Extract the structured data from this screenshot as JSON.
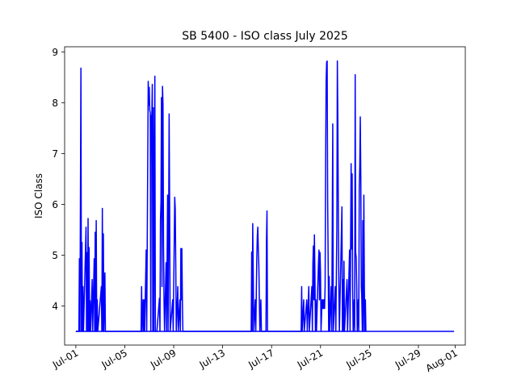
{
  "chart_data": {
    "type": "line",
    "title": "SB 5400 - ISO class July 2025",
    "xlabel": "",
    "ylabel": "ISO Class",
    "xlim": [
      "2025-06-30T02:00",
      "2025-08-01T20:00"
    ],
    "ylim": [
      3.23,
      9.1
    ],
    "grid": false,
    "legend": "none",
    "x_tick_labels": [
      {
        "date": "2025-07-01",
        "label": "Jul-01"
      },
      {
        "date": "2025-07-05",
        "label": "Jul-05"
      },
      {
        "date": "2025-07-09",
        "label": "Jul-09"
      },
      {
        "date": "2025-07-13",
        "label": "Jul-13"
      },
      {
        "date": "2025-07-17",
        "label": "Jul-17"
      },
      {
        "date": "2025-07-21",
        "label": "Jul-21"
      },
      {
        "date": "2025-07-25",
        "label": "Jul-25"
      },
      {
        "date": "2025-07-29",
        "label": "Jul-29"
      },
      {
        "date": "2025-08-01",
        "label": "Aug-01"
      }
    ],
    "y_ticks": [
      4,
      5,
      6,
      7,
      8,
      9
    ],
    "series": [
      {
        "color": "#0000ff",
        "baseline": 3.5,
        "points": [
          [
            "2025-07-01T00:00",
            3.5
          ],
          [
            "2025-07-01T06:00",
            3.5
          ],
          [
            "2025-07-01T07:00",
            4.93
          ],
          [
            "2025-07-01T08:00",
            3.5
          ],
          [
            "2025-07-01T10:00",
            8.68
          ],
          [
            "2025-07-01T11:00",
            3.5
          ],
          [
            "2025-07-01T12:00",
            5.25
          ],
          [
            "2025-07-01T13:00",
            3.5
          ],
          [
            "2025-07-01T14:00",
            4.38
          ],
          [
            "2025-07-01T15:00",
            3.5
          ],
          [
            "2025-07-01T20:00",
            5.55
          ],
          [
            "2025-07-01T21:00",
            3.5
          ],
          [
            "2025-07-01T22:00",
            5.05
          ],
          [
            "2025-07-01T23:00",
            3.5
          ],
          [
            "2025-07-02T00:00",
            5.72
          ],
          [
            "2025-07-02T01:00",
            3.5
          ],
          [
            "2025-07-02T02:00",
            5.15
          ],
          [
            "2025-07-02T03:00",
            3.5
          ],
          [
            "2025-07-02T04:00",
            4.1
          ],
          [
            "2025-07-02T05:00",
            3.5
          ],
          [
            "2025-07-02T08:00",
            4.52
          ],
          [
            "2025-07-02T09:00",
            3.5
          ],
          [
            "2025-07-02T12:00",
            4.93
          ],
          [
            "2025-07-02T13:00",
            3.5
          ],
          [
            "2025-07-02T14:00",
            5.45
          ],
          [
            "2025-07-02T15:00",
            3.5
          ],
          [
            "2025-07-02T16:00",
            5.68
          ],
          [
            "2025-07-02T17:00",
            3.5
          ],
          [
            "2025-07-02T18:00",
            4.12
          ],
          [
            "2025-07-02T19:00",
            3.5
          ],
          [
            "2025-07-03T02:00",
            4.38
          ],
          [
            "2025-07-03T03:00",
            3.5
          ],
          [
            "2025-07-03T04:00",
            5.92
          ],
          [
            "2025-07-03T05:00",
            3.5
          ],
          [
            "2025-07-03T06:00",
            5.42
          ],
          [
            "2025-07-03T07:00",
            3.5
          ],
          [
            "2025-07-03T09:00",
            4.65
          ],
          [
            "2025-07-03T10:00",
            3.5
          ],
          [
            "2025-07-06T08:00",
            3.5
          ],
          [
            "2025-07-06T09:00",
            4.38
          ],
          [
            "2025-07-06T10:00",
            3.5
          ],
          [
            "2025-07-06T12:00",
            4.12
          ],
          [
            "2025-07-06T13:00",
            3.5
          ],
          [
            "2025-07-06T14:00",
            4.12
          ],
          [
            "2025-07-06T15:00",
            3.5
          ],
          [
            "2025-07-06T18:00",
            5.1
          ],
          [
            "2025-07-06T19:00",
            3.5
          ],
          [
            "2025-07-06T22:00",
            8.42
          ],
          [
            "2025-07-06T23:00",
            7.95
          ],
          [
            "2025-07-07T00:00",
            8.3
          ],
          [
            "2025-07-07T01:00",
            7.85
          ],
          [
            "2025-07-07T02:00",
            7.8
          ],
          [
            "2025-07-07T03:00",
            3.5
          ],
          [
            "2025-07-07T04:00",
            7.75
          ],
          [
            "2025-07-07T05:00",
            7.7
          ],
          [
            "2025-07-07T06:00",
            8.36
          ],
          [
            "2025-07-07T07:00",
            3.5
          ],
          [
            "2025-07-07T08:00",
            7.9
          ],
          [
            "2025-07-07T09:00",
            3.5
          ],
          [
            "2025-07-07T11:00",
            8.52
          ],
          [
            "2025-07-07T12:00",
            3.5
          ],
          [
            "2025-07-07T15:00",
            3.5
          ],
          [
            "2025-07-07T20:00",
            4.15
          ],
          [
            "2025-07-07T21:00",
            3.5
          ],
          [
            "2025-07-07T22:00",
            5.68
          ],
          [
            "2025-07-07T23:00",
            6.05
          ],
          [
            "2025-07-08T00:00",
            8.1
          ],
          [
            "2025-07-08T01:00",
            4.38
          ],
          [
            "2025-07-08T02:00",
            8.32
          ],
          [
            "2025-07-08T03:00",
            7.95
          ],
          [
            "2025-07-08T04:00",
            5.2
          ],
          [
            "2025-07-08T05:00",
            4.12
          ],
          [
            "2025-07-08T06:00",
            3.5
          ],
          [
            "2025-07-08T09:00",
            4.85
          ],
          [
            "2025-07-08T10:00",
            3.5
          ],
          [
            "2025-07-08T12:00",
            6.18
          ],
          [
            "2025-07-08T13:00",
            3.5
          ],
          [
            "2025-07-08T14:00",
            5.35
          ],
          [
            "2025-07-08T15:00",
            7.78
          ],
          [
            "2025-07-08T16:00",
            5.98
          ],
          [
            "2025-07-08T17:00",
            3.5
          ],
          [
            "2025-07-08T22:00",
            4.12
          ],
          [
            "2025-07-08T23:00",
            3.5
          ],
          [
            "2025-07-09T02:00",
            6.14
          ],
          [
            "2025-07-09T03:00",
            5.9
          ],
          [
            "2025-07-09T04:00",
            4.85
          ],
          [
            "2025-07-09T05:00",
            3.5
          ],
          [
            "2025-07-09T08:00",
            4.38
          ],
          [
            "2025-07-09T09:00",
            3.5
          ],
          [
            "2025-07-09T12:00",
            4.12
          ],
          [
            "2025-07-09T13:00",
            3.5
          ],
          [
            "2025-07-09T14:00",
            5.13
          ],
          [
            "2025-07-09T15:00",
            4.12
          ],
          [
            "2025-07-09T16:00",
            5.13
          ],
          [
            "2025-07-09T17:00",
            4.12
          ],
          [
            "2025-07-09T18:00",
            3.5
          ],
          [
            "2025-07-15T08:00",
            3.5
          ],
          [
            "2025-07-15T09:00",
            5.06
          ],
          [
            "2025-07-15T10:00",
            3.5
          ],
          [
            "2025-07-15T11:00",
            5.62
          ],
          [
            "2025-07-15T12:00",
            4.65
          ],
          [
            "2025-07-15T13:00",
            3.5
          ],
          [
            "2025-07-15T16:00",
            4.12
          ],
          [
            "2025-07-15T17:00",
            3.5
          ],
          [
            "2025-07-15T19:00",
            4.95
          ],
          [
            "2025-07-15T20:00",
            5.38
          ],
          [
            "2025-07-15T21:00",
            5.55
          ],
          [
            "2025-07-15T22:00",
            5.1
          ],
          [
            "2025-07-15T23:00",
            4.8
          ],
          [
            "2025-07-16T00:00",
            4.12
          ],
          [
            "2025-07-16T01:00",
            3.5
          ],
          [
            "2025-07-16T03:00",
            4.12
          ],
          [
            "2025-07-16T04:00",
            3.5
          ],
          [
            "2025-07-16T13:00",
            3.5
          ],
          [
            "2025-07-16T14:00",
            5.3
          ],
          [
            "2025-07-16T15:00",
            5.87
          ],
          [
            "2025-07-16T16:00",
            3.5
          ],
          [
            "2025-07-19T10:00",
            3.5
          ],
          [
            "2025-07-19T11:00",
            4.38
          ],
          [
            "2025-07-19T12:00",
            3.5
          ],
          [
            "2025-07-19T15:00",
            4.12
          ],
          [
            "2025-07-19T16:00",
            3.5
          ],
          [
            "2025-07-19T21:00",
            4.12
          ],
          [
            "2025-07-19T22:00",
            3.5
          ],
          [
            "2025-07-20T01:00",
            4.38
          ],
          [
            "2025-07-20T02:00",
            3.5
          ],
          [
            "2025-07-20T07:00",
            4.38
          ],
          [
            "2025-07-20T08:00",
            3.5
          ],
          [
            "2025-07-20T09:00",
            4.82
          ],
          [
            "2025-07-20T10:00",
            5.18
          ],
          [
            "2025-07-20T11:00",
            4.12
          ],
          [
            "2025-07-20T12:00",
            5.4
          ],
          [
            "2025-07-20T13:00",
            4.65
          ],
          [
            "2025-07-20T14:00",
            3.5
          ],
          [
            "2025-07-20T15:00",
            4.12
          ],
          [
            "2025-07-20T16:00",
            3.5
          ],
          [
            "2025-07-20T20:00",
            4.85
          ],
          [
            "2025-07-20T21:00",
            5.1
          ],
          [
            "2025-07-20T22:00",
            4.12
          ],
          [
            "2025-07-20T23:00",
            5.05
          ],
          [
            "2025-07-21T00:00",
            4.65
          ],
          [
            "2025-07-21T01:00",
            3.5
          ],
          [
            "2025-07-21T03:00",
            4.12
          ],
          [
            "2025-07-21T04:00",
            3.95
          ],
          [
            "2025-07-21T05:00",
            4.12
          ],
          [
            "2025-07-21T06:00",
            3.95
          ],
          [
            "2025-07-21T07:00",
            4.12
          ],
          [
            "2025-07-21T08:00",
            3.95
          ],
          [
            "2025-07-21T09:00",
            4.38
          ],
          [
            "2025-07-21T10:00",
            6.78
          ],
          [
            "2025-07-21T11:00",
            8.42
          ],
          [
            "2025-07-21T12:00",
            8.8
          ],
          [
            "2025-07-21T13:00",
            8.82
          ],
          [
            "2025-07-21T14:00",
            6.05
          ],
          [
            "2025-07-21T15:00",
            4.85
          ],
          [
            "2025-07-21T16:00",
            3.5
          ],
          [
            "2025-07-21T17:00",
            4.58
          ],
          [
            "2025-07-21T18:00",
            3.5
          ],
          [
            "2025-07-21T21:00",
            4.38
          ],
          [
            "2025-07-21T22:00",
            3.5
          ],
          [
            "2025-07-22T00:00",
            7.58
          ],
          [
            "2025-07-22T01:00",
            3.5
          ],
          [
            "2025-07-22T05:00",
            4.38
          ],
          [
            "2025-07-22T06:00",
            3.5
          ],
          [
            "2025-07-22T08:00",
            5.52
          ],
          [
            "2025-07-22T09:00",
            8.82
          ],
          [
            "2025-07-22T10:00",
            7.6
          ],
          [
            "2025-07-22T11:00",
            5.72
          ],
          [
            "2025-07-22T12:00",
            4.38
          ],
          [
            "2025-07-22T13:00",
            3.5
          ],
          [
            "2025-07-22T18:00",
            5.95
          ],
          [
            "2025-07-22T19:00",
            3.5
          ],
          [
            "2025-07-22T20:00",
            4.52
          ],
          [
            "2025-07-22T21:00",
            3.5
          ],
          [
            "2025-07-22T22:00",
            4.88
          ],
          [
            "2025-07-22T23:00",
            3.5
          ],
          [
            "2025-07-23T04:00",
            4.52
          ],
          [
            "2025-07-23T05:00",
            3.5
          ],
          [
            "2025-07-23T09:00",
            5.1
          ],
          [
            "2025-07-23T10:00",
            3.5
          ],
          [
            "2025-07-23T11:00",
            5.25
          ],
          [
            "2025-07-23T12:00",
            6.8
          ],
          [
            "2025-07-23T13:00",
            5.12
          ],
          [
            "2025-07-23T14:00",
            6.6
          ],
          [
            "2025-07-23T15:00",
            4.38
          ],
          [
            "2025-07-23T16:00",
            3.5
          ],
          [
            "2025-07-23T18:00",
            4.12
          ],
          [
            "2025-07-23T19:00",
            3.5
          ],
          [
            "2025-07-23T20:00",
            8.55
          ],
          [
            "2025-07-23T21:00",
            5.05
          ],
          [
            "2025-07-23T22:00",
            4.95
          ],
          [
            "2025-07-23T23:00",
            4.38
          ],
          [
            "2025-07-24T00:00",
            3.5
          ],
          [
            "2025-07-24T02:00",
            4.12
          ],
          [
            "2025-07-24T03:00",
            3.5
          ],
          [
            "2025-07-24T04:00",
            6.32
          ],
          [
            "2025-07-24T05:00",
            6.75
          ],
          [
            "2025-07-24T06:00",
            7.72
          ],
          [
            "2025-07-24T07:00",
            6.55
          ],
          [
            "2025-07-24T08:00",
            4.38
          ],
          [
            "2025-07-24T09:00",
            4.12
          ],
          [
            "2025-07-24T10:00",
            3.5
          ],
          [
            "2025-07-24T11:00",
            5.68
          ],
          [
            "2025-07-24T12:00",
            3.5
          ],
          [
            "2025-07-24T13:00",
            6.18
          ],
          [
            "2025-07-24T14:00",
            4.38
          ],
          [
            "2025-07-24T15:00",
            3.5
          ],
          [
            "2025-07-24T16:00",
            4.12
          ],
          [
            "2025-07-24T17:00",
            3.5
          ]
        ]
      }
    ]
  }
}
